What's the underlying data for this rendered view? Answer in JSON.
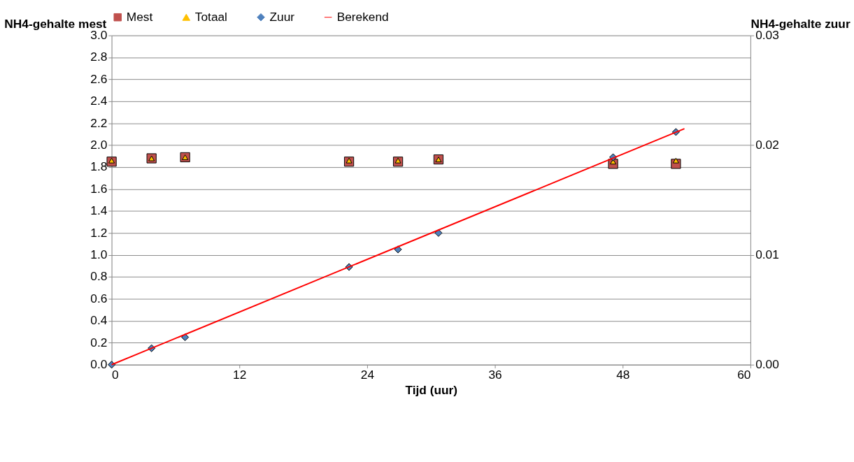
{
  "chart_data": {
    "type": "scatter",
    "xlabel": "Tijd (uur)",
    "ylabel": "NH4-gehalte mest",
    "y2label": "NH4-gehalte zuur",
    "xlim": [
      0,
      60
    ],
    "xticks": [
      0,
      12,
      24,
      36,
      48,
      60
    ],
    "ylim": [
      0,
      3
    ],
    "yticks": [
      {
        "value": 0,
        "label": "0.0"
      },
      0.2,
      0.4,
      0.6,
      0.8,
      {
        "value": 1,
        "label": "1.0"
      },
      1.2,
      1.4,
      1.6,
      1.8,
      {
        "value": 2,
        "label": "2.0"
      },
      2.2,
      2.4,
      2.6,
      2.8,
      {
        "value": 3,
        "label": "3.0"
      }
    ],
    "y2lim": [
      0,
      0.03
    ],
    "y2ticks": [
      {
        "value": 0,
        "label": "0.00"
      },
      0.01,
      0.02,
      0.03
    ],
    "grid": "y",
    "legend": "top",
    "series": [
      {
        "name": "Mest",
        "marker": "square",
        "color": "#c0504d",
        "x": [
          0,
          3.75,
          6.9,
          22.3,
          26.9,
          30.7,
          47.1,
          53.0
        ],
        "values": [
          1.85,
          1.88,
          1.89,
          1.85,
          1.85,
          1.87,
          1.83,
          1.83
        ]
      },
      {
        "name": "Totaal",
        "marker": "triangle",
        "color": "#ffc000",
        "x": [
          0,
          3.75,
          6.9,
          22.3,
          26.9,
          30.7,
          47.1,
          53.0
        ],
        "values": [
          1.86,
          1.88,
          1.89,
          1.86,
          1.86,
          1.87,
          1.85,
          1.86
        ]
      },
      {
        "name": "Zuur",
        "marker": "diamond",
        "axis": "y2",
        "color": "#4f81bd",
        "x": [
          0,
          3.75,
          6.9,
          22.3,
          26.9,
          30.7,
          47.1,
          53.0
        ],
        "values": [
          0,
          0.0015,
          0.0025,
          0.0089,
          0.0105,
          0.012,
          0.0189,
          0.0212
        ]
      },
      {
        "name": "Berekend",
        "type": "line",
        "marker": "none",
        "line_style": "solid",
        "axis": "y2",
        "color": "#ff0000",
        "x": [
          0,
          53.8
        ],
        "values": [
          0,
          0.0215
        ]
      }
    ]
  }
}
